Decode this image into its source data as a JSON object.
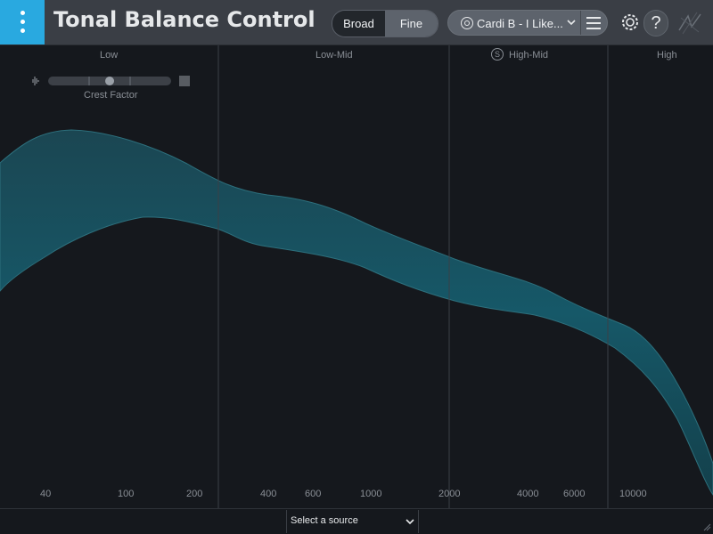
{
  "app": {
    "title": "Tonal Balance Control"
  },
  "view_toggle": {
    "broad_label": "Broad",
    "fine_label": "Fine",
    "selected": "Broad"
  },
  "preset": {
    "name": "Cardi B - I Like..."
  },
  "icons": {
    "logo": "izotope-logo-icon",
    "target": "target-icon",
    "dropdown": "chevron-down-icon",
    "menu": "hamburger-menu-icon",
    "settings": "gear-icon",
    "help": "help-icon",
    "brand": "brand-icon",
    "crest_low": "crest-low-icon",
    "crest_high": "crest-high-icon",
    "solo": "solo-icon"
  },
  "bands": {
    "low": "Low",
    "low_mid": "Low-Mid",
    "high_mid": "High-Mid",
    "high": "High"
  },
  "solo_badge": "S",
  "crest_factor": {
    "label": "Crest Factor",
    "value": 0.5
  },
  "freq_ticks": [
    "40",
    "100",
    "200",
    "400",
    "600",
    "1000",
    "2000",
    "4000",
    "6000",
    "10000"
  ],
  "source_select": {
    "label": "Select a source"
  },
  "colors": {
    "accent": "#29a9e0",
    "curve_fill": "#174a55",
    "curve_edge": "#2d6f7c",
    "background": "#15181d"
  }
}
